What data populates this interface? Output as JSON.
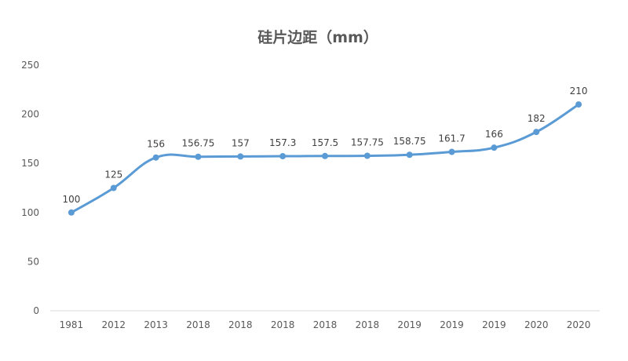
{
  "chart_data": {
    "type": "line",
    "title": "硅片边距（mm）",
    "xlabel": "",
    "ylabel": "",
    "categories": [
      "1981",
      "2012",
      "2013",
      "2018",
      "2018",
      "2018",
      "2018",
      "2018",
      "2019",
      "2019",
      "2019",
      "2020",
      "2020"
    ],
    "series": [
      {
        "values": [
          100,
          125,
          156,
          156.75,
          157,
          157.3,
          157.5,
          157.75,
          158.75,
          161.7,
          166,
          182,
          210
        ],
        "labels": [
          "100",
          "125",
          "156",
          "156.75",
          "157",
          "157.3",
          "157.5",
          "157.75",
          "158.75",
          "161.7",
          "166",
          "182",
          "210"
        ],
        "color": "#5B9BD5"
      }
    ],
    "ylim": [
      0,
      250
    ],
    "yticks": [
      "0",
      "50",
      "100",
      "150",
      "200",
      "250"
    ],
    "smooth": true,
    "grid": false,
    "legend": "none"
  }
}
